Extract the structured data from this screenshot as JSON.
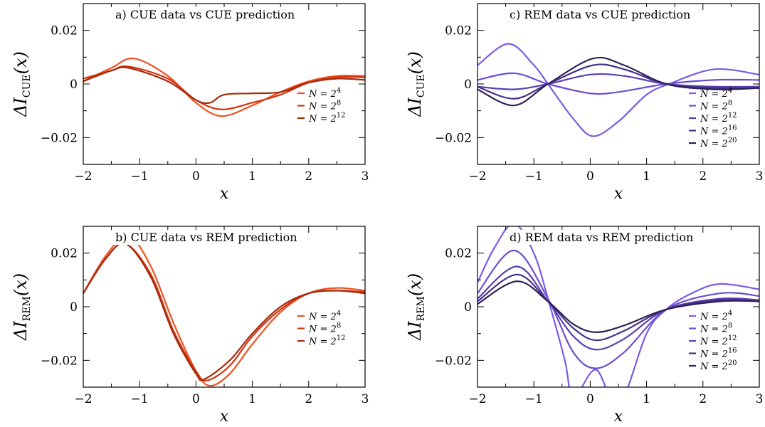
{
  "colors": {
    "orange": "#f0501e",
    "mid_red": "#d2320f",
    "dark_red": "#a52a0a",
    "violet1": "#7b5be6",
    "violet2": "#6a4ed0",
    "violet3": "#5a40b0",
    "violet4": "#453088",
    "violet5": "#2e2258"
  },
  "axes": {
    "xlabel": "x",
    "ylabel_cue": {
      "prefix": "ΔI",
      "sub": "CUE",
      "suffix": "(x)"
    },
    "ylabel_rem": {
      "prefix": "ΔI",
      "sub": "REM",
      "suffix": "(x)"
    },
    "xticks": [
      "−2",
      "−1",
      "0",
      "1",
      "2",
      "3"
    ],
    "yticks": [
      "−0.02",
      "0",
      "0.02"
    ]
  },
  "chart_data": [
    {
      "type": "line",
      "title": "a) CUE data vs CUE prediction",
      "xlim": [
        -2,
        3
      ],
      "ylim": [
        -0.03,
        0.03
      ],
      "legend_position": "right",
      "series": [
        {
          "name": "N = 2^4",
          "label_base": "N = 2",
          "label_exp": "4",
          "color": "#f0501e",
          "x": [
            -2,
            -1.5,
            -1.1,
            -0.5,
            0,
            0.45,
            1,
            1.5,
            2,
            2.5,
            3
          ],
          "y": [
            0.001,
            0.006,
            0.0095,
            0.003,
            -0.007,
            -0.012,
            -0.008,
            -0.003,
            0.001,
            0.003,
            0.003
          ]
        },
        {
          "name": "N = 2^8",
          "label_base": "N = 2",
          "label_exp": "8",
          "color": "#d2320f",
          "x": [
            -2,
            -1.5,
            -1.2,
            -0.5,
            0,
            0.45,
            1,
            1.5,
            2,
            2.5,
            3
          ],
          "y": [
            0.002,
            0.005,
            0.0065,
            0.002,
            -0.006,
            -0.0095,
            -0.007,
            -0.004,
            0.0005,
            0.0025,
            0.0025
          ]
        },
        {
          "name": "N = 2^12",
          "label_base": "N = 2",
          "label_exp": "12",
          "color": "#a52a0a",
          "x": [
            -2,
            -1.5,
            -1.2,
            -0.5,
            0,
            0.25,
            0.5,
            1,
            1.5,
            2,
            2.5,
            3
          ],
          "y": [
            0.001,
            0.005,
            0.006,
            0.001,
            -0.006,
            -0.007,
            -0.004,
            -0.0035,
            -0.003,
            0.0005,
            0.002,
            0.0015
          ]
        }
      ]
    },
    {
      "type": "line",
      "title": "b) CUE data vs REM prediction",
      "xlim": [
        -2,
        3
      ],
      "ylim": [
        -0.03,
        0.03
      ],
      "legend_position": "right",
      "series": [
        {
          "name": "N = 2^4",
          "label_base": "N = 2",
          "label_exp": "4",
          "color": "#f0501e",
          "x": [
            -2,
            -1.6,
            -1.2,
            -0.8,
            -0.4,
            0,
            0.25,
            0.6,
            1,
            1.5,
            2,
            2.5,
            3
          ],
          "y": [
            0.005,
            0.019,
            0.0265,
            0.015,
            -0.006,
            -0.024,
            -0.0295,
            -0.025,
            -0.014,
            -0.002,
            0.005,
            0.007,
            0.006
          ]
        },
        {
          "name": "N = 2^8",
          "label_base": "N = 2",
          "label_exp": "8",
          "color": "#d2320f",
          "x": [
            -2,
            -1.6,
            -1.25,
            -0.8,
            -0.4,
            0,
            0.2,
            0.6,
            1,
            1.5,
            2,
            2.5,
            3
          ],
          "y": [
            0.005,
            0.018,
            0.0235,
            0.012,
            -0.009,
            -0.024,
            -0.0275,
            -0.022,
            -0.011,
            -0.001,
            0.005,
            0.006,
            0.0055
          ]
        },
        {
          "name": "N = 2^12",
          "label_base": "N = 2",
          "label_exp": "12",
          "color": "#a52a0a",
          "x": [
            -2,
            -1.6,
            -1.25,
            -0.8,
            -0.4,
            0,
            0.15,
            0.6,
            1,
            1.5,
            2,
            2.5,
            3
          ],
          "y": [
            0.005,
            0.018,
            0.0235,
            0.011,
            -0.01,
            -0.025,
            -0.027,
            -0.02,
            -0.01,
            0,
            0.005,
            0.006,
            0.005
          ]
        }
      ]
    },
    {
      "type": "line",
      "title": "c) REM data vs CUE prediction",
      "xlim": [
        -2,
        3
      ],
      "ylim": [
        -0.03,
        0.03
      ],
      "legend_position": "right",
      "series": [
        {
          "name": "N = 2^4",
          "label_base": "N = 2",
          "label_exp": "4",
          "color": "#7b5be6",
          "x": [
            -2,
            -1.45,
            -1,
            -0.75,
            -0.3,
            0.05,
            0.5,
            1,
            1.4,
            2.2,
            3
          ],
          "y": [
            0.007,
            0.015,
            0.007,
            0,
            -0.013,
            -0.0195,
            -0.014,
            -0.004,
            0,
            0.0055,
            0.0035
          ]
        },
        {
          "name": "N = 2^8",
          "label_base": "N = 2",
          "label_exp": "8",
          "color": "#6a4ed0",
          "x": [
            -2,
            -1.35,
            -0.75,
            0,
            0.5,
            1.35,
            2.2,
            3
          ],
          "y": [
            0.0015,
            0.004,
            0,
            -0.0035,
            -0.003,
            0,
            0.0015,
            0.0015
          ]
        },
        {
          "name": "N = 2^12",
          "label_base": "N = 2",
          "label_exp": "12",
          "color": "#5a40b0",
          "x": [
            -2,
            -1.35,
            -0.75,
            0,
            0.6,
            1.35,
            2.2,
            3
          ],
          "y": [
            -0.001,
            -0.002,
            0,
            0.0035,
            0.003,
            0,
            -0.001,
            -0.001
          ]
        },
        {
          "name": "N = 2^16",
          "label_base": "N = 2",
          "label_exp": "16",
          "color": "#453088",
          "x": [
            -2,
            -1.35,
            -0.75,
            0.05,
            0.6,
            1.35,
            2.2,
            3
          ],
          "y": [
            -0.001,
            -0.0055,
            0,
            0.007,
            0.0055,
            0,
            -0.0015,
            -0.0015
          ]
        },
        {
          "name": "N = 2^20",
          "label_base": "N = 2",
          "label_exp": "20",
          "color": "#2e2258",
          "x": [
            -2,
            -1.35,
            -0.75,
            0.05,
            0.6,
            1.35,
            2.2,
            3
          ],
          "y": [
            -0.002,
            -0.008,
            0,
            0.0095,
            0.007,
            0,
            -0.002,
            -0.0015
          ]
        }
      ]
    },
    {
      "type": "line",
      "title": "d) REM data vs REM prediction",
      "xlim": [
        -2,
        3
      ],
      "ylim": [
        -0.03,
        0.03
      ],
      "legend_position": "right",
      "series": [
        {
          "name": "N = 2^4",
          "label_base": "N = 2",
          "label_exp": "4",
          "color": "#7b5be6",
          "x": [
            -2,
            -1.7,
            -1.35,
            -1,
            -0.75,
            -0.45,
            -0.3,
            0.1,
            0.5,
            1,
            1.35,
            1.8,
            2.3,
            3
          ],
          "y": [
            0.009,
            0.022,
            0.031,
            0.02,
            0.003,
            -0.02,
            -0.034,
            -0.0235,
            -0.037,
            -0.01,
            -0.001,
            0.005,
            0.0085,
            0.0065
          ]
        },
        {
          "name": "N = 2^8",
          "label_base": "N = 2",
          "label_exp": "8",
          "color": "#6a4ed0",
          "x": [
            -2,
            -1.35,
            -0.75,
            -0.3,
            0.1,
            0.6,
            1.35,
            2.3,
            3
          ],
          "y": [
            0.005,
            0.021,
            0.003,
            -0.017,
            -0.023,
            -0.017,
            -0.001,
            0.005,
            0.004
          ]
        },
        {
          "name": "N = 2^12",
          "label_base": "N = 2",
          "label_exp": "12",
          "color": "#5a40b0",
          "x": [
            -2,
            -1.3,
            -0.75,
            -0.3,
            0.1,
            0.6,
            1.35,
            2.3,
            3
          ],
          "y": [
            0.003,
            0.015,
            0.002,
            -0.011,
            -0.016,
            -0.012,
            -0.001,
            0.003,
            0.0025
          ]
        },
        {
          "name": "N = 2^16",
          "label_base": "N = 2",
          "label_exp": "16",
          "color": "#453088",
          "x": [
            -2,
            -1.3,
            -0.75,
            -0.3,
            0.1,
            0.6,
            1.35,
            2.3,
            3
          ],
          "y": [
            0.002,
            0.012,
            0.002,
            -0.008,
            -0.0125,
            -0.009,
            -0.001,
            0.0025,
            0.002
          ]
        },
        {
          "name": "N = 2^20",
          "label_base": "N = 2",
          "label_exp": "20",
          "color": "#2e2258",
          "x": [
            -2,
            -1.3,
            -0.75,
            -0.3,
            0.1,
            0.6,
            1.35,
            2.3,
            3
          ],
          "y": [
            0.001,
            0.0095,
            0.002,
            -0.0065,
            -0.0095,
            -0.007,
            -0.001,
            0.002,
            0.002
          ]
        }
      ]
    }
  ]
}
